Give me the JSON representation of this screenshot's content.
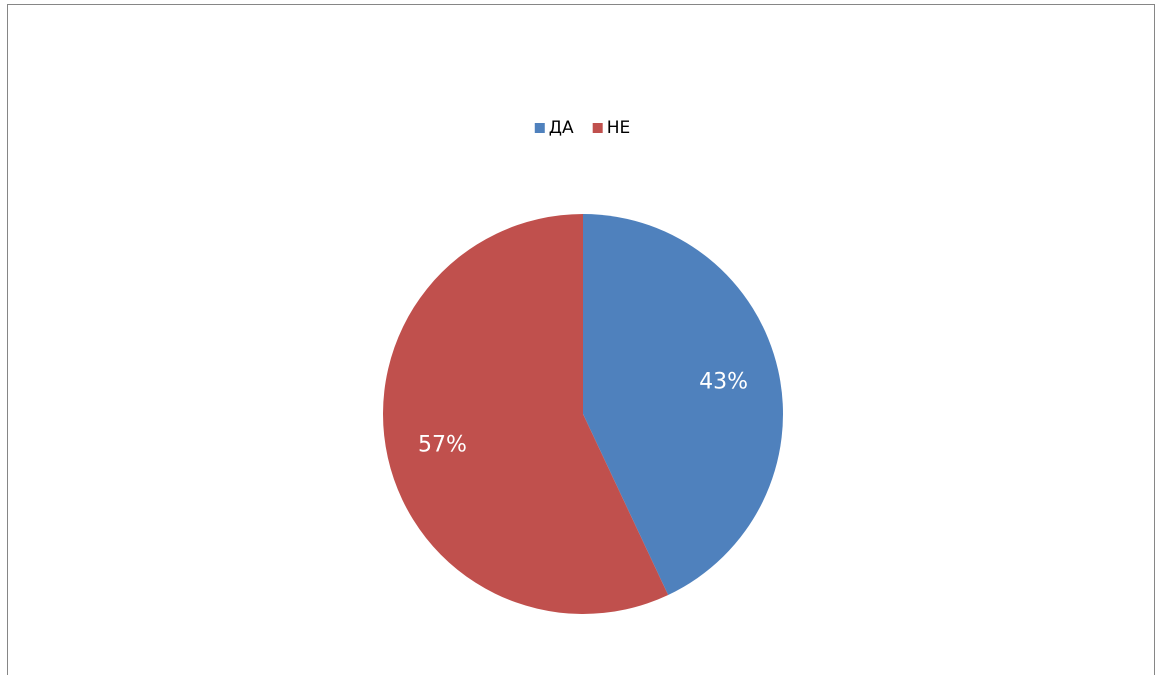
{
  "chart_data": {
    "type": "pie",
    "categories": [
      "ДА",
      "НЕ"
    ],
    "values": [
      43,
      57
    ],
    "value_labels": [
      "43%",
      "57%"
    ],
    "colors": [
      "#4f81bd",
      "#c0504d"
    ],
    "legend": "top"
  }
}
